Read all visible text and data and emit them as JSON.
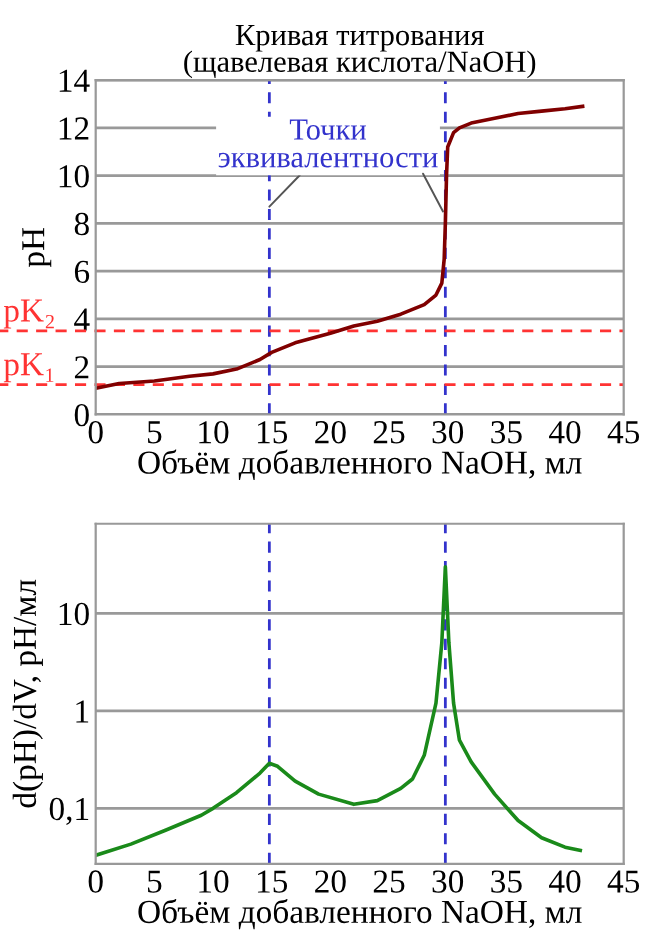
{
  "chart_data": [
    {
      "type": "line",
      "title": "Кривая титрования\n(щавелевая кислота/NaOH)",
      "xlabel": "Объём добавленного NaOH, мл",
      "ylabel": "pH",
      "xlim": [
        0,
        45
      ],
      "xticks": [
        0,
        5,
        10,
        15,
        20,
        25,
        30,
        35,
        40,
        45
      ],
      "ylim": [
        0,
        14
      ],
      "yticks": [
        0,
        2,
        4,
        6,
        8,
        10,
        12,
        14
      ],
      "grid": "y",
      "line_style": "solid",
      "series": [
        {
          "color": "#800000",
          "x": [
            0,
            2,
            5,
            8,
            10,
            12,
            13,
            14,
            15,
            17,
            20,
            22,
            24,
            26,
            27,
            28,
            29,
            29.5,
            29.7,
            29.8,
            29.9,
            30,
            30.5,
            31,
            32,
            34,
            36,
            38,
            40,
            41.5
          ],
          "values": [
            1.1,
            1.3,
            1.4,
            1.6,
            1.7,
            1.9,
            2.1,
            2.3,
            2.6,
            3.0,
            3.4,
            3.7,
            3.9,
            4.2,
            4.4,
            4.6,
            5.0,
            5.5,
            6.5,
            8,
            10,
            11.2,
            11.8,
            12.0,
            12.2,
            12.4,
            12.6,
            12.7,
            12.8,
            12.9
          ]
        }
      ],
      "ref_lines": [
        {
          "axis": "x",
          "value": 14.8,
          "color": "#3333cc",
          "line_style": "dashed"
        },
        {
          "axis": "x",
          "value": 29.8,
          "color": "#3333cc",
          "line_style": "dashed"
        },
        {
          "axis": "y",
          "value": 1.25,
          "label": "pK₁",
          "color": "#ff3333",
          "line_style": "dashed"
        },
        {
          "axis": "y",
          "value": 3.5,
          "label": "pK₂",
          "color": "#ff3333",
          "line_style": "dashed"
        }
      ],
      "annotations": [
        {
          "text": "Точки\nэквивалентности",
          "x": 14.8,
          "y": 8.7
        }
      ]
    },
    {
      "type": "line",
      "xlabel": "Объём добавленного NaOH, мл",
      "ylabel": "d(pH)/dV, pH/мл",
      "log": "y",
      "xlim": [
        0,
        45
      ],
      "xticks": [
        0,
        5,
        10,
        15,
        20,
        25,
        30,
        35,
        40,
        45
      ],
      "ylim": [
        0.027,
        83
      ],
      "yticks": [
        {
          "value": 0.1,
          "label": "0,1"
        },
        1,
        10
      ],
      "grid": "y",
      "line_style": "solid",
      "series": [
        {
          "color": "#1a8a1a",
          "x": [
            0,
            3,
            6,
            9,
            10,
            12,
            14,
            14.8,
            15.5,
            17,
            19,
            22,
            24,
            26,
            27,
            28,
            29,
            29.5,
            29.8,
            30.1,
            30.5,
            31,
            32,
            34,
            36,
            38,
            40,
            41.3
          ],
          "values": [
            0.033,
            0.043,
            0.06,
            0.085,
            0.1,
            0.145,
            0.23,
            0.29,
            0.27,
            0.19,
            0.14,
            0.11,
            0.12,
            0.16,
            0.2,
            0.35,
            1.2,
            5,
            30,
            5,
            1.2,
            0.5,
            0.3,
            0.14,
            0.075,
            0.05,
            0.04,
            0.037
          ]
        }
      ],
      "ref_lines": [
        {
          "axis": "x",
          "value": 14.8,
          "color": "#3333cc",
          "line_style": "dashed"
        },
        {
          "axis": "x",
          "value": 29.8,
          "color": "#3333cc",
          "line_style": "dashed"
        }
      ]
    }
  ]
}
